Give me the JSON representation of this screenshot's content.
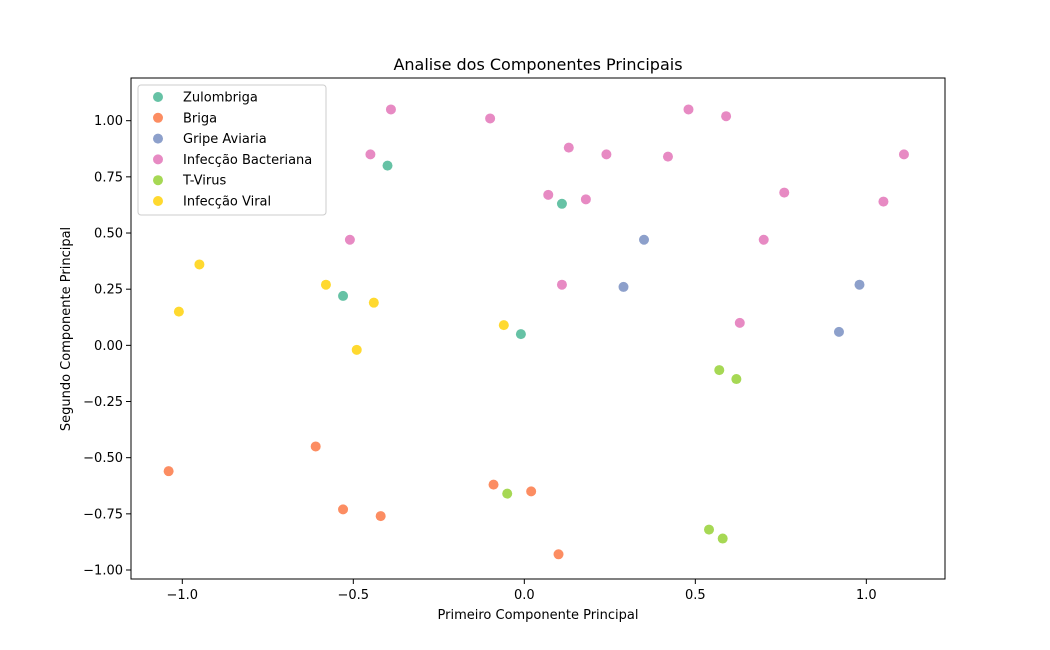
{
  "chart_data": {
    "type": "scatter",
    "title": "Analise dos Componentes Principais",
    "xlabel": "Primeiro Componente Principal",
    "ylabel": "Segundo Componente Principal",
    "xlim": [
      -1.15,
      1.23
    ],
    "ylim": [
      -1.04,
      1.19
    ],
    "xticks": [
      -1.0,
      -0.5,
      0.0,
      0.5,
      1.0
    ],
    "xtick_labels": [
      "−1.0",
      "−0.5",
      "0.0",
      "0.5",
      "1.0"
    ],
    "yticks": [
      -1.0,
      -0.75,
      -0.5,
      -0.25,
      0.0,
      0.25,
      0.5,
      0.75,
      1.0
    ],
    "ytick_labels": [
      "−1.00",
      "−0.75",
      "−0.50",
      "−0.25",
      "0.00",
      "0.25",
      "0.50",
      "0.75",
      "1.00"
    ],
    "grid": false,
    "legend_position": "top-left",
    "series": [
      {
        "name": "Zulombriga",
        "color": "#66c2a5",
        "points": [
          [
            -0.4,
            0.8
          ],
          [
            0.11,
            0.63
          ],
          [
            -0.53,
            0.22
          ],
          [
            -0.01,
            0.05
          ]
        ]
      },
      {
        "name": "Briga",
        "color": "#fc8d62",
        "points": [
          [
            -1.04,
            -0.56
          ],
          [
            -0.61,
            -0.45
          ],
          [
            -0.53,
            -0.73
          ],
          [
            -0.42,
            -0.76
          ],
          [
            -0.09,
            -0.62
          ],
          [
            0.02,
            -0.65
          ],
          [
            0.1,
            -0.93
          ]
        ]
      },
      {
        "name": "Gripe Aviaria",
        "color": "#8da0cb",
        "points": [
          [
            0.35,
            0.47
          ],
          [
            0.29,
            0.26
          ],
          [
            0.98,
            0.27
          ],
          [
            0.92,
            0.06
          ]
        ]
      },
      {
        "name": "Infecção Bacteriana",
        "color": "#e78ac3",
        "points": [
          [
            -0.39,
            1.05
          ],
          [
            -0.1,
            1.01
          ],
          [
            0.48,
            1.05
          ],
          [
            0.59,
            1.02
          ],
          [
            -0.45,
            0.85
          ],
          [
            0.13,
            0.88
          ],
          [
            0.24,
            0.85
          ],
          [
            0.42,
            0.84
          ],
          [
            1.11,
            0.85
          ],
          [
            0.07,
            0.67
          ],
          [
            0.18,
            0.65
          ],
          [
            0.76,
            0.68
          ],
          [
            1.05,
            0.64
          ],
          [
            -0.51,
            0.47
          ],
          [
            0.7,
            0.47
          ],
          [
            0.11,
            0.27
          ],
          [
            0.63,
            0.1
          ]
        ]
      },
      {
        "name": "T-Virus",
        "color": "#a6d854",
        "points": [
          [
            0.57,
            -0.11
          ],
          [
            0.62,
            -0.15
          ],
          [
            -0.05,
            -0.66
          ],
          [
            0.54,
            -0.82
          ],
          [
            0.58,
            -0.86
          ]
        ]
      },
      {
        "name": "Infecção Viral",
        "color": "#ffd92f",
        "points": [
          [
            -0.95,
            0.36
          ],
          [
            -1.01,
            0.15
          ],
          [
            -0.58,
            0.27
          ],
          [
            -0.44,
            0.19
          ],
          [
            -0.49,
            -0.02
          ],
          [
            -0.06,
            0.09
          ]
        ]
      }
    ]
  }
}
